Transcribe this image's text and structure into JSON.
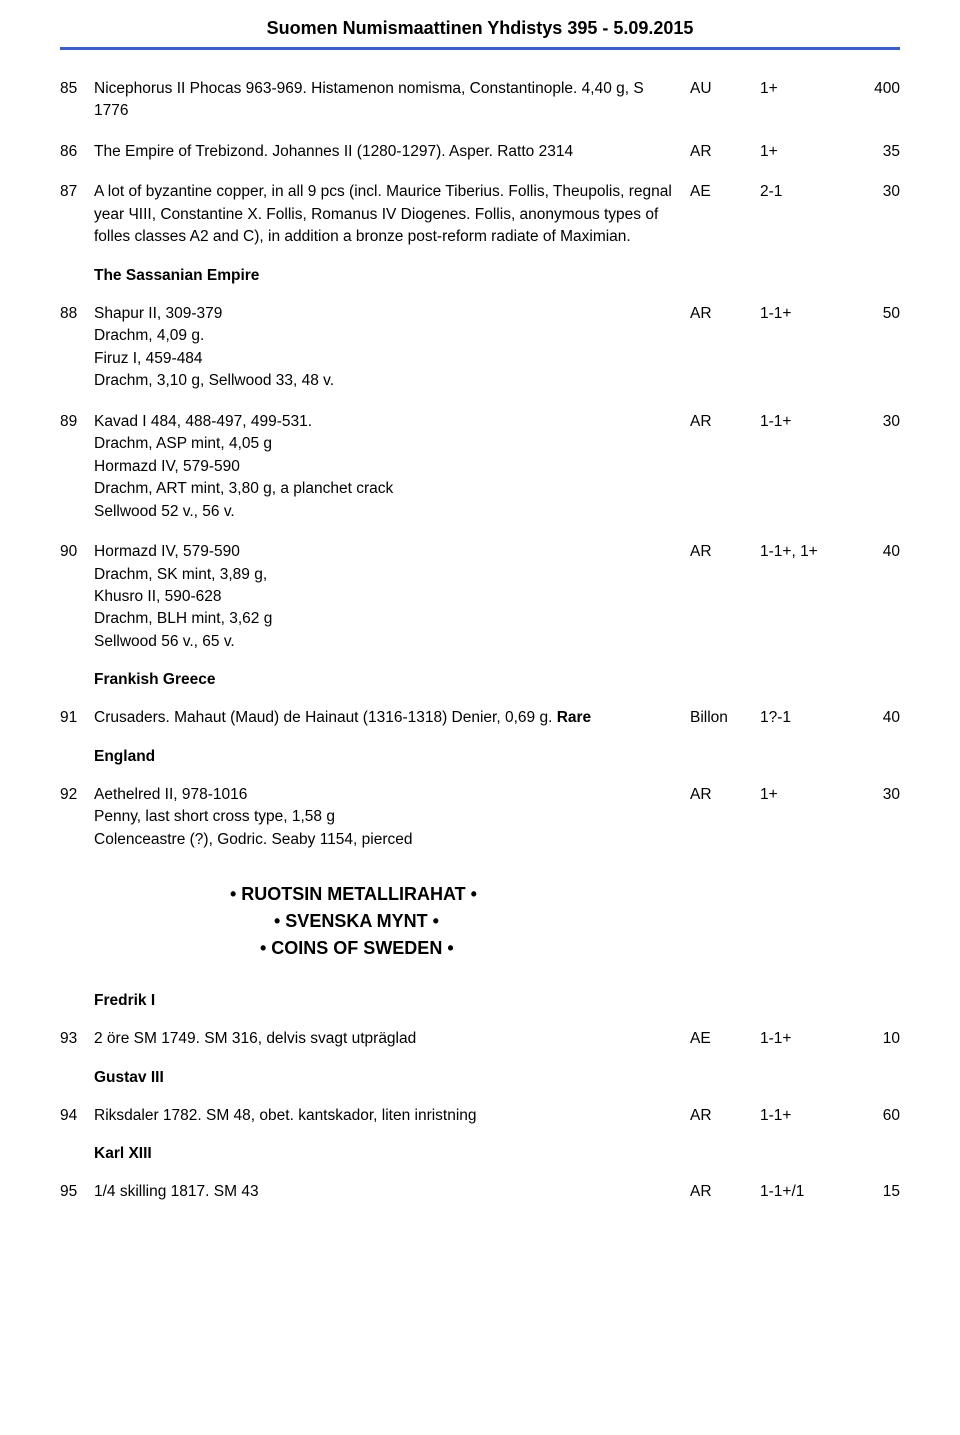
{
  "header_title": "Suomen Numismaattinen Yhdistys 395 - 5.09.2015",
  "lots_a": [
    {
      "num": "85",
      "desc": "Nicephorus II Phocas 963-969. Histamenon nomisma, Constantinople. 4,40 g, S 1776",
      "metal": "AU",
      "grade": "1+",
      "price": "400"
    },
    {
      "num": "86",
      "desc": "The Empire of Trebizond. Johannes II (1280-1297). Asper. Ratto 2314",
      "metal": "AR",
      "grade": "1+",
      "price": "35"
    },
    {
      "num": "87",
      "desc": "A lot of byzantine copper, in all 9 pcs (incl. Maurice Tiberius. Follis, Theupolis, regnal year ЧIII, Constantine X. Follis, Romanus IV Diogenes. Follis, anonymous types of folles classes A2 and C), in addition a bronze post-reform radiate of Maximian.",
      "metal": "AE",
      "grade": "2-1",
      "price": "30"
    }
  ],
  "section_sassanian": "The Sassanian Empire",
  "lots_b": [
    {
      "num": "88",
      "desc": "Shapur II, 309-379\nDrachm, 4,09 g.\nFiruz I, 459-484\nDrachm, 3,10 g, Sellwood 33, 48 v.",
      "metal": "AR",
      "grade": "1-1+",
      "price": "50"
    },
    {
      "num": "89",
      "desc": "Kavad I 484, 488-497, 499-531.\nDrachm, ASP mint, 4,05 g\nHormazd IV, 579-590\nDrachm, ART mint, 3,80 g, a planchet crack\nSellwood 52 v., 56 v.",
      "metal": "AR",
      "grade": "1-1+",
      "price": "30"
    },
    {
      "num": "90",
      "desc": "Hormazd IV, 579-590\nDrachm, SK mint, 3,89 g,\nKhusro II, 590-628\nDrachm, BLH mint, 3,62 g\nSellwood 56 v., 65 v.",
      "metal": "AR",
      "grade": "1-1+, 1+",
      "price": "40"
    }
  ],
  "section_frankish": "Frankish Greece",
  "lot_91": {
    "num": "91",
    "desc_pre": "Crusaders. Mahaut (Maud) de Hainaut (1316-1318) Denier, 0,69 g. ",
    "desc_rare": "Rare",
    "metal": "Billon",
    "grade": "1?-1",
    "price": "40"
  },
  "section_england": "England",
  "lot_92": {
    "num": "92",
    "desc": "Aethelred II, 978-1016\nPenny, last short cross type, 1,58 g\nColenceastre (?), Godric. Seaby 1154, pierced",
    "metal": "AR",
    "grade": "1+",
    "price": "30"
  },
  "big_section": {
    "l1": "•  RUOTSIN METALLIRAHAT  •",
    "l2": "•  SVENSKA MYNT  •",
    "l3": "•  COINS OF SWEDEN  •"
  },
  "section_fredrik": "Fredrik I",
  "lot_93": {
    "num": "93",
    "desc": "2 öre SM 1749. SM 316, delvis svagt utpräglad",
    "metal": "AE",
    "grade": "1-1+",
    "price": "10"
  },
  "section_gustav": "Gustav III",
  "lot_94": {
    "num": "94",
    "desc": "Riksdaler 1782. SM 48, obet. kantskador, liten inristning",
    "metal": "AR",
    "grade": "1-1+",
    "price": "60"
  },
  "section_karl": "Karl XIII",
  "lot_95": {
    "num": "95",
    "desc": "1/4 skilling 1817. SM 43",
    "metal": "AR",
    "grade": "1-1+/1",
    "price": "15"
  },
  "colors": {
    "rule": "#3a5ec4",
    "text": "#000000",
    "background": "#ffffff"
  }
}
